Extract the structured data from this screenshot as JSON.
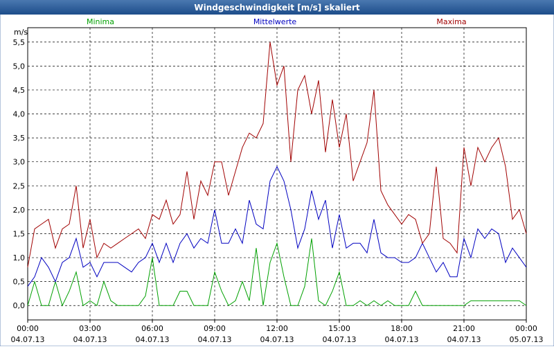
{
  "chart_data": {
    "type": "line",
    "title": "Windgeschwindigkeit [m/s] skaliert",
    "y_unit": "m/s",
    "x": [
      0,
      20,
      40,
      60,
      80,
      100,
      120,
      140,
      160,
      180,
      200,
      220,
      240,
      260,
      280,
      300,
      320,
      340,
      360,
      380,
      400,
      420,
      440,
      460,
      480,
      500,
      520,
      540,
      560,
      580,
      600,
      620,
      640,
      660,
      680,
      700,
      720,
      740,
      760,
      780,
      800,
      820,
      840,
      860,
      880,
      900,
      920,
      940,
      960,
      980,
      1000,
      1020,
      1040,
      1060,
      1080,
      1100,
      1120,
      1140,
      1160,
      1180,
      1200,
      1220,
      1240,
      1260,
      1280,
      1300,
      1320,
      1340,
      1360,
      1380,
      1400,
      1420,
      1440
    ],
    "series": [
      {
        "name": "Minima",
        "color": "#00a000",
        "values": [
          0,
          0.5,
          0,
          0,
          0.5,
          0,
          0.3,
          0.7,
          0,
          0.1,
          0,
          0.5,
          0.1,
          0,
          0,
          0,
          0,
          0.2,
          1.0,
          0,
          0,
          0,
          0.3,
          0.3,
          0,
          0,
          0,
          0.7,
          0.3,
          0,
          0.1,
          0.5,
          0.1,
          1.2,
          0,
          0.9,
          1.3,
          0.6,
          0,
          0,
          0.4,
          1.4,
          0.1,
          0,
          0.3,
          0.7,
          0,
          0,
          0.1,
          0,
          0.1,
          0,
          0.1,
          0,
          0,
          0,
          0.3,
          0,
          0,
          0,
          0,
          0,
          0,
          0,
          0.1,
          0.1,
          0.1,
          0.1,
          0.1,
          0.1,
          0.1,
          0.1,
          0
        ]
      },
      {
        "name": "Mittelwerte",
        "color": "#0000c0",
        "values": [
          0.4,
          0.6,
          1.0,
          0.8,
          0.5,
          0.9,
          1.0,
          1.4,
          0.8,
          0.9,
          0.6,
          0.9,
          0.9,
          0.9,
          0.8,
          0.7,
          0.9,
          1.0,
          1.3,
          0.9,
          1.3,
          0.9,
          1.3,
          1.5,
          1.2,
          1.4,
          1.3,
          2.0,
          1.3,
          1.3,
          1.6,
          1.3,
          2.2,
          1.7,
          1.6,
          2.6,
          2.9,
          2.6,
          2.0,
          1.2,
          1.6,
          2.4,
          1.8,
          2.2,
          1.2,
          1.9,
          1.2,
          1.3,
          1.3,
          1.1,
          1.8,
          1.1,
          1.0,
          1.0,
          0.9,
          0.9,
          1.0,
          1.3,
          1.0,
          0.7,
          0.9,
          0.6,
          0.6,
          1.4,
          1.0,
          1.6,
          1.4,
          1.6,
          1.5,
          0.9,
          1.2,
          1.0,
          0.8
        ]
      },
      {
        "name": "Maxima",
        "color": "#a00000",
        "values": [
          0.8,
          1.6,
          1.7,
          1.8,
          1.2,
          1.6,
          1.7,
          2.5,
          1.2,
          1.8,
          1.0,
          1.3,
          1.2,
          1.3,
          1.4,
          1.5,
          1.6,
          1.4,
          1.9,
          1.8,
          2.2,
          1.7,
          1.9,
          2.8,
          1.8,
          2.6,
          2.3,
          3.0,
          3.0,
          2.3,
          2.8,
          3.3,
          3.6,
          3.5,
          3.8,
          5.5,
          4.6,
          5.0,
          3.0,
          4.5,
          4.8,
          4.0,
          4.7,
          3.2,
          4.3,
          3.3,
          4.0,
          2.6,
          3.0,
          3.4,
          4.5,
          2.4,
          2.1,
          1.9,
          1.7,
          1.9,
          1.8,
          1.3,
          1.5,
          2.9,
          1.4,
          1.3,
          1.1,
          3.3,
          2.5,
          3.3,
          3.0,
          3.3,
          3.5,
          2.9,
          1.8,
          2.0,
          1.5
        ]
      }
    ],
    "xlim": [
      0,
      1440
    ],
    "xticks": [
      {
        "value": 0,
        "label": "00:00",
        "date": "04.07.13"
      },
      {
        "value": 180,
        "label": "03:00",
        "date": "04.07.13"
      },
      {
        "value": 360,
        "label": "06:00",
        "date": "04.07.13"
      },
      {
        "value": 540,
        "label": "09:00",
        "date": "04.07.13"
      },
      {
        "value": 720,
        "label": "12:00",
        "date": "04.07.13"
      },
      {
        "value": 900,
        "label": "15:00",
        "date": "04.07.13"
      },
      {
        "value": 1080,
        "label": "18:00",
        "date": "04.07.13"
      },
      {
        "value": 1260,
        "label": "21:00",
        "date": "04.07.13"
      },
      {
        "value": 1440,
        "label": "00:00",
        "date": "05.07.13"
      }
    ],
    "ylim": [
      -0.3,
      5.8
    ],
    "yticks": [
      {
        "value": 0,
        "label": "0,0"
      },
      {
        "value": 0.5,
        "label": "0,5"
      },
      {
        "value": 1,
        "label": "1,0"
      },
      {
        "value": 1.5,
        "label": "1,5"
      },
      {
        "value": 2,
        "label": "2,0"
      },
      {
        "value": 2.5,
        "label": "2,5"
      },
      {
        "value": 3,
        "label": "3,0"
      },
      {
        "value": 3.5,
        "label": "3,5"
      },
      {
        "value": 4,
        "label": "4,0"
      },
      {
        "value": 4.5,
        "label": "4,5"
      },
      {
        "value": 5,
        "label": "5,0"
      },
      {
        "value": 5.5,
        "label": "5,5"
      }
    ],
    "grid": true
  }
}
